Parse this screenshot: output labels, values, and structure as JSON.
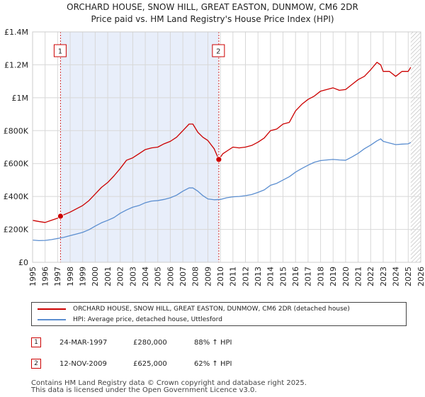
{
  "chart_data": {
    "type": "line",
    "title": "ORCHARD HOUSE, SNOW HILL, GREAT EASTON, DUNMOW, CM6 2DR",
    "subtitle": "Price paid vs. HM Land Registry's House Price Index (HPI)",
    "y_ticks": [
      {
        "value": 0,
        "label": "£0"
      },
      {
        "value": 200000,
        "label": "£200K"
      },
      {
        "value": 400000,
        "label": "£400K"
      },
      {
        "value": 600000,
        "label": "£600K"
      },
      {
        "value": 800000,
        "label": "£800K"
      },
      {
        "value": 1000000,
        "label": "£1M"
      },
      {
        "value": 1200000,
        "label": "£1.2M"
      },
      {
        "value": 1400000,
        "label": "£1.4M"
      }
    ],
    "x_ticks": [
      "1995",
      "1996",
      "1997",
      "1998",
      "1999",
      "2000",
      "2001",
      "2002",
      "2003",
      "2004",
      "2005",
      "2006",
      "2007",
      "2008",
      "2009",
      "2010",
      "2011",
      "2012",
      "2013",
      "2014",
      "2015",
      "2016",
      "2017",
      "2018",
      "2019",
      "2020",
      "2021",
      "2022",
      "2023",
      "2024",
      "2025",
      "2026"
    ],
    "xlim": [
      1995,
      2026
    ],
    "ylim": [
      0,
      1400000
    ],
    "series": [
      {
        "name": "ORCHARD HOUSE, SNOW HILL, GREAT EASTON, DUNMOW, CM6 2DR (detached house)",
        "color": "#cc0000",
        "x": [
          1995.0,
          1995.5,
          1996.0,
          1996.5,
          1997.0,
          1997.23,
          1997.6,
          1998.0,
          1998.5,
          1999.0,
          1999.5,
          2000.0,
          2000.5,
          2001.0,
          2001.5,
          2002.0,
          2002.5,
          2003.0,
          2003.5,
          2004.0,
          2004.5,
          2005.0,
          2005.5,
          2006.0,
          2006.5,
          2007.0,
          2007.5,
          2007.8,
          2008.2,
          2008.6,
          2009.0,
          2009.5,
          2009.87,
          2010.2,
          2010.6,
          2011.0,
          2011.5,
          2012.0,
          2012.5,
          2013.0,
          2013.5,
          2014.0,
          2014.5,
          2015.0,
          2015.5,
          2016.0,
          2016.5,
          2017.0,
          2017.5,
          2018.0,
          2018.5,
          2019.0,
          2019.5,
          2020.0,
          2020.5,
          2021.0,
          2021.5,
          2022.0,
          2022.5,
          2022.8,
          2023.0,
          2023.5,
          2024.0,
          2024.5,
          2025.0,
          2025.2
        ],
        "values": [
          255000,
          248000,
          242000,
          255000,
          268000,
          280000,
          292000,
          305000,
          325000,
          345000,
          375000,
          415000,
          455000,
          485000,
          525000,
          570000,
          620000,
          635000,
          660000,
          685000,
          695000,
          700000,
          720000,
          735000,
          760000,
          800000,
          840000,
          840000,
          790000,
          760000,
          740000,
          690000,
          625000,
          660000,
          680000,
          700000,
          695000,
          700000,
          710000,
          730000,
          755000,
          800000,
          810000,
          840000,
          850000,
          920000,
          960000,
          990000,
          1010000,
          1040000,
          1050000,
          1060000,
          1045000,
          1050000,
          1080000,
          1110000,
          1130000,
          1170000,
          1215000,
          1200000,
          1160000,
          1160000,
          1130000,
          1160000,
          1160000,
          1185000
        ]
      },
      {
        "name": "HPI: Average price, detached house, Uttlesford",
        "color": "#5b8ed0",
        "x": [
          1995.0,
          1995.5,
          1996.0,
          1996.5,
          1997.0,
          1997.5,
          1998.0,
          1998.5,
          1999.0,
          1999.5,
          2000.0,
          2000.5,
          2001.0,
          2001.5,
          2002.0,
          2002.5,
          2003.0,
          2003.5,
          2004.0,
          2004.5,
          2005.0,
          2005.5,
          2006.0,
          2006.5,
          2007.0,
          2007.5,
          2007.8,
          2008.2,
          2008.6,
          2009.0,
          2009.5,
          2010.0,
          2010.5,
          2011.0,
          2011.5,
          2012.0,
          2012.5,
          2013.0,
          2013.5,
          2014.0,
          2014.5,
          2015.0,
          2015.5,
          2016.0,
          2016.5,
          2017.0,
          2017.5,
          2018.0,
          2018.5,
          2019.0,
          2019.5,
          2020.0,
          2020.5,
          2021.0,
          2021.5,
          2022.0,
          2022.5,
          2022.8,
          2023.0,
          2023.5,
          2024.0,
          2024.5,
          2025.0,
          2025.2
        ],
        "values": [
          135000,
          132000,
          133000,
          138000,
          145000,
          152000,
          162000,
          172000,
          182000,
          198000,
          220000,
          240000,
          255000,
          272000,
          298000,
          318000,
          335000,
          345000,
          362000,
          372000,
          375000,
          382000,
          392000,
          408000,
          432000,
          452000,
          452000,
          432000,
          405000,
          385000,
          380000,
          382000,
          392000,
          398000,
          400000,
          405000,
          412000,
          425000,
          440000,
          468000,
          480000,
          500000,
          520000,
          548000,
          570000,
          590000,
          608000,
          618000,
          622000,
          625000,
          622000,
          620000,
          640000,
          662000,
          690000,
          712000,
          738000,
          750000,
          735000,
          725000,
          715000,
          718000,
          720000,
          728000
        ]
      }
    ],
    "vertical_markers": [
      {
        "label": "1",
        "x": 1997.23,
        "y": 280000
      },
      {
        "label": "2",
        "x": 2009.87,
        "y": 625000
      }
    ],
    "forecast_from_x": 2025.2,
    "shaded_span": [
      1997.23,
      2009.87
    ]
  },
  "legend": {
    "property_label": "ORCHARD HOUSE, SNOW HILL, GREAT EASTON, DUNMOW, CM6 2DR (detached house)",
    "hpi_label": "HPI: Average price, detached house, Uttlesford"
  },
  "transactions": [
    {
      "num": "1",
      "date": "24-MAR-1997",
      "price": "£280,000",
      "hpi": "88% ↑ HPI"
    },
    {
      "num": "2",
      "date": "12-NOV-2009",
      "price": "£625,000",
      "hpi": "62% ↑ HPI"
    }
  ],
  "footer": {
    "line1": "Contains HM Land Registry data © Crown copyright and database right 2025.",
    "line2": "This data is licensed under the Open Government Licence v3.0."
  }
}
